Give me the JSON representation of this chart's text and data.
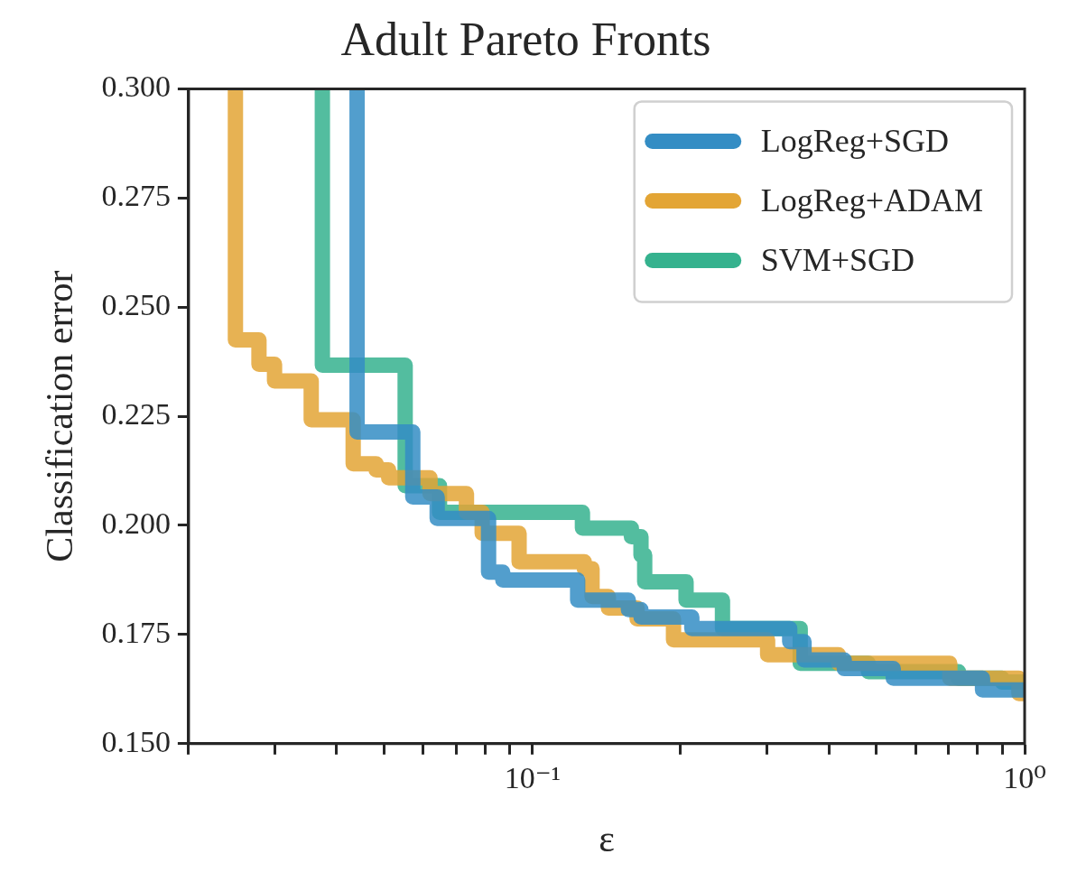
{
  "chart_data": {
    "type": "step",
    "title": "Adult Pareto Fronts",
    "xlabel": "ε",
    "ylabel": "Classification error",
    "log": "x",
    "legend": "top right",
    "grid": false,
    "line_style": "solid",
    "marker": "none",
    "xlim": [
      0.02,
      1
    ],
    "xticks": [
      {
        "value": 0.02,
        "label": null
      },
      {
        "value": 0.03,
        "label": null
      },
      {
        "value": 0.04,
        "label": null
      },
      {
        "value": 0.05,
        "label": null
      },
      {
        "value": 0.06,
        "label": null
      },
      {
        "value": 0.07,
        "label": null
      },
      {
        "value": 0.08,
        "label": null
      },
      {
        "value": 0.09,
        "label": null
      },
      {
        "value": 0.1,
        "label": "10⁻¹"
      },
      {
        "value": 0.2,
        "label": null
      },
      {
        "value": 0.3,
        "label": null
      },
      {
        "value": 0.4,
        "label": null
      },
      {
        "value": 0.5,
        "label": null
      },
      {
        "value": 0.6,
        "label": null
      },
      {
        "value": 0.7,
        "label": null
      },
      {
        "value": 0.8,
        "label": null
      },
      {
        "value": 0.9,
        "label": null
      },
      {
        "value": 1,
        "label": "10⁰"
      }
    ],
    "ylim": [
      0.15,
      0.3
    ],
    "yticks": [
      {
        "value": 0.15,
        "label": "0.150"
      },
      {
        "value": 0.175,
        "label": "0.175"
      },
      {
        "value": 0.2,
        "label": "0.200"
      },
      {
        "value": 0.225,
        "label": "0.225"
      },
      {
        "value": 0.25,
        "label": "0.250"
      },
      {
        "value": 0.275,
        "label": "0.275"
      },
      {
        "value": 0.3,
        "label": "0.300"
      }
    ],
    "series": [
      {
        "name": "LogReg+SGD",
        "color": "#348dc4",
        "x": [
          0.044,
          0.044,
          0.0571,
          0.064,
          0.0814,
          0.087,
          0.1235,
          0.1566,
          0.1661,
          0.2107,
          0.3331,
          0.3562,
          0.4299,
          0.5408,
          0.8211,
          1
        ],
        "values": [
          0.3,
          0.2214,
          0.2065,
          0.2016,
          0.1893,
          0.1875,
          0.1829,
          0.1807,
          0.179,
          0.1764,
          0.1734,
          0.1692,
          0.1672,
          0.165,
          0.1623,
          0.1623
        ]
      },
      {
        "name": "LogReg+ADAM",
        "color": "#e3a535",
        "x": [
          0.0249,
          0.0249,
          0.0278,
          0.0299,
          0.0355,
          0.0432,
          0.0481,
          0.051,
          0.0619,
          0.0734,
          0.079,
          0.0939,
          0.1274,
          0.1321,
          0.1426,
          0.1631,
          0.1934,
          0.3004,
          0.4185,
          0.7046,
          0.9735,
          1
        ],
        "values": [
          0.3,
          0.2425,
          0.2369,
          0.2331,
          0.2242,
          0.2141,
          0.2127,
          0.2109,
          0.2073,
          0.203,
          0.1982,
          0.1917,
          0.1901,
          0.1837,
          0.1811,
          0.1786,
          0.1738,
          0.1704,
          0.1684,
          0.165,
          0.1615,
          0.1615
        ]
      },
      {
        "name": "SVM+SGD",
        "color": "#35b28e",
        "x": [
          0.0374,
          0.0374,
          0.0551,
          0.0647,
          0.1263,
          0.1588,
          0.1661,
          0.169,
          0.2051,
          0.2432,
          0.3499,
          0.4813,
          0.7337,
          0.9,
          1
        ],
        "values": [
          0.3,
          0.2367,
          0.2091,
          0.203,
          0.1994,
          0.1974,
          0.1932,
          0.1871,
          0.1829,
          0.1764,
          0.1684,
          0.1665,
          0.165,
          0.1641,
          0.1641
        ]
      }
    ]
  }
}
